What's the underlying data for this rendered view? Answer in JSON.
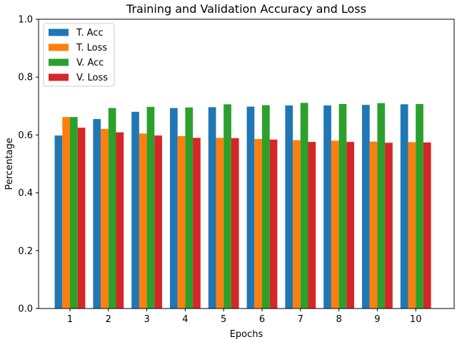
{
  "chart_data": {
    "type": "bar",
    "title": "Training and Validation Accuracy and Loss",
    "xlabel": "Epochs",
    "ylabel": "Percentage",
    "categories": [
      "1",
      "2",
      "3",
      "4",
      "5",
      "6",
      "7",
      "8",
      "9",
      "10"
    ],
    "ylim": [
      0,
      1.0
    ],
    "yticks": [
      "0.0",
      "0.2",
      "0.4",
      "0.6",
      "0.8",
      "1.0"
    ],
    "grid": false,
    "legend_position": "top-left",
    "series": [
      {
        "name": "T. Acc",
        "color": "#1f77b4",
        "values": [
          0.598,
          0.655,
          0.68,
          0.693,
          0.696,
          0.698,
          0.702,
          0.702,
          0.704,
          0.706
        ]
      },
      {
        "name": "T. Loss",
        "color": "#ff7f0e",
        "values": [
          0.662,
          0.621,
          0.605,
          0.596,
          0.59,
          0.586,
          0.582,
          0.58,
          0.577,
          0.575
        ]
      },
      {
        "name": "V. Acc",
        "color": "#2ca02c",
        "values": [
          0.662,
          0.693,
          0.697,
          0.695,
          0.706,
          0.703,
          0.711,
          0.707,
          0.71,
          0.707
        ]
      },
      {
        "name": "V. Loss",
        "color": "#d62728",
        "values": [
          0.625,
          0.609,
          0.598,
          0.59,
          0.589,
          0.584,
          0.576,
          0.576,
          0.573,
          0.574
        ]
      }
    ]
  }
}
